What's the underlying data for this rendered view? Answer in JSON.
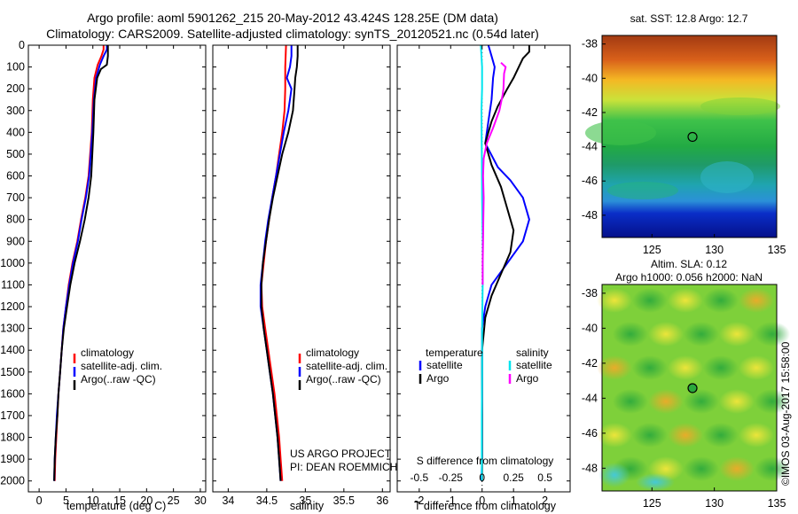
{
  "header": {
    "title_line1": "Argo profile: aoml 5901262_215 20-May-2012 43.424S 128.25E (DM data)",
    "title_line2": "Climatology: CARS2009. Satellite-adjusted climatology: synTS_20120521.nc (0.54d later)"
  },
  "colors": {
    "climatology": "#ff0000",
    "satellite": "#0000ff",
    "argo": "#000000",
    "salinity_satellite": "#00e5ee",
    "salinity_argo": "#ff00ff"
  },
  "panels": {
    "temperature": {
      "xlabel": "temperature (deg C)"
    },
    "salinity": {
      "xlabel": "salinity",
      "credit_line1": "US ARGO PROJECT",
      "credit_line2": "PI: DEAN ROEMMICH"
    },
    "difference": {
      "xlabel_bottom": "T difference from climatology",
      "xlabel_top": "S difference from climatology"
    }
  },
  "legends": {
    "clim": [
      "climatology",
      "satellite-adj. clim.",
      "Argo(..raw -QC)"
    ],
    "diff_temperature_title": "temperature",
    "diff_salinity_title": "salinity",
    "diff_temperature_items": [
      "satellite",
      "Argo"
    ],
    "diff_salinity_items": [
      "satellite",
      "Argo"
    ]
  },
  "maps": {
    "sst_title": "sat. SST: 12.8 Argo: 12.7",
    "sla_title_line1": "Altim. SLA: 0.12",
    "sla_title_line2": "Argo h1000: 0.056 h2000: NaN",
    "stamp": "©IMOS 03-Aug-2017 15:58:00",
    "lon_ticks": [
      "125",
      "130",
      "135"
    ],
    "lat_ticks": [
      "-38",
      "-40",
      "-42",
      "-44",
      "-46",
      "-48"
    ],
    "lon_range": [
      121,
      135
    ],
    "lat_range": [
      -49.3,
      -37.5
    ],
    "argo_lon": 128.25,
    "argo_lat": -43.424
  },
  "chart_data": [
    {
      "type": "line",
      "panel": "temperature",
      "xlabel": "temperature (deg C)",
      "xlim": [
        -2,
        31
      ],
      "ylim": [
        2050,
        0
      ],
      "x_ticks": [
        0,
        5,
        10,
        15,
        20,
        25,
        30
      ],
      "y_ticks": [
        0,
        100,
        200,
        300,
        400,
        500,
        600,
        700,
        800,
        900,
        1000,
        1100,
        1200,
        1300,
        1400,
        1500,
        1600,
        1700,
        1800,
        1900,
        2000
      ],
      "series": [
        {
          "name": "climatology",
          "color": "#ff0000",
          "points": [
            [
              12.0,
              0
            ],
            [
              12.0,
              20
            ],
            [
              11.6,
              50
            ],
            [
              10.9,
              90
            ],
            [
              10.3,
              150
            ],
            [
              10.0,
              250
            ],
            [
              9.8,
              400
            ],
            [
              9.5,
              500
            ],
            [
              9.2,
              600
            ],
            [
              8.6,
              700
            ],
            [
              7.8,
              800
            ],
            [
              7.1,
              900
            ],
            [
              6.2,
              1000
            ],
            [
              5.5,
              1100
            ],
            [
              5.0,
              1200
            ],
            [
              4.5,
              1300
            ],
            [
              4.2,
              1400
            ],
            [
              3.9,
              1500
            ],
            [
              3.6,
              1600
            ],
            [
              3.4,
              1700
            ],
            [
              3.2,
              1800
            ],
            [
              3.0,
              1900
            ],
            [
              2.9,
              2000
            ]
          ]
        },
        {
          "name": "satellite-adj. clim.",
          "color": "#0000ff",
          "points": [
            [
              12.6,
              0
            ],
            [
              12.6,
              20
            ],
            [
              12.0,
              50
            ],
            [
              11.3,
              90
            ],
            [
              10.6,
              150
            ],
            [
              10.2,
              250
            ],
            [
              9.9,
              400
            ],
            [
              9.6,
              500
            ],
            [
              9.3,
              600
            ],
            [
              8.7,
              700
            ],
            [
              7.9,
              800
            ],
            [
              7.2,
              900
            ],
            [
              6.3,
              1000
            ],
            [
              5.6,
              1100
            ],
            [
              5.0,
              1200
            ],
            [
              4.5,
              1300
            ],
            [
              4.2,
              1400
            ],
            [
              3.9,
              1500
            ],
            [
              3.6,
              1600
            ],
            [
              3.3,
              1700
            ],
            [
              3.1,
              1800
            ],
            [
              2.9,
              1900
            ],
            [
              2.8,
              2000
            ]
          ]
        },
        {
          "name": "Argo(..raw -QC)",
          "color": "#000000",
          "points": [
            [
              12.8,
              0
            ],
            [
              12.8,
              50
            ],
            [
              12.6,
              90
            ],
            [
              11.5,
              110
            ],
            [
              10.8,
              150
            ],
            [
              10.3,
              250
            ],
            [
              10.1,
              400
            ],
            [
              9.9,
              500
            ],
            [
              9.7,
              600
            ],
            [
              9.2,
              700
            ],
            [
              8.5,
              800
            ],
            [
              7.6,
              900
            ],
            [
              6.6,
              1000
            ],
            [
              5.8,
              1100
            ],
            [
              5.2,
              1200
            ],
            [
              4.6,
              1300
            ],
            [
              4.2,
              1400
            ],
            [
              3.9,
              1500
            ],
            [
              3.6,
              1600
            ],
            [
              3.4,
              1700
            ],
            [
              3.1,
              1800
            ],
            [
              2.9,
              1900
            ],
            [
              2.8,
              2000
            ]
          ]
        }
      ]
    },
    {
      "type": "line",
      "panel": "salinity",
      "xlabel": "salinity",
      "xlim": [
        33.8,
        36.1
      ],
      "ylim": [
        2050,
        0
      ],
      "x_ticks": [
        34,
        34.5,
        35,
        35.5,
        36
      ],
      "series": [
        {
          "name": "climatology",
          "color": "#ff0000",
          "points": [
            [
              34.75,
              0
            ],
            [
              34.74,
              100
            ],
            [
              34.74,
              200
            ],
            [
              34.73,
              300
            ],
            [
              34.7,
              400
            ],
            [
              34.66,
              500
            ],
            [
              34.62,
              600
            ],
            [
              34.57,
              700
            ],
            [
              34.53,
              800
            ],
            [
              34.49,
              900
            ],
            [
              34.46,
              1000
            ],
            [
              34.43,
              1100
            ],
            [
              34.44,
              1200
            ],
            [
              34.48,
              1300
            ],
            [
              34.52,
              1400
            ],
            [
              34.56,
              1500
            ],
            [
              34.6,
              1600
            ],
            [
              34.63,
              1700
            ],
            [
              34.66,
              1800
            ],
            [
              34.68,
              1900
            ],
            [
              34.7,
              2000
            ]
          ]
        },
        {
          "name": "satellite-adj. clim.",
          "color": "#0000ff",
          "points": [
            [
              34.82,
              0
            ],
            [
              34.82,
              50
            ],
            [
              34.8,
              100
            ],
            [
              34.76,
              150
            ],
            [
              34.82,
              200
            ],
            [
              34.8,
              250
            ],
            [
              34.78,
              300
            ],
            [
              34.72,
              400
            ],
            [
              34.67,
              500
            ],
            [
              34.62,
              600
            ],
            [
              34.57,
              700
            ],
            [
              34.52,
              800
            ],
            [
              34.48,
              900
            ],
            [
              34.45,
              1000
            ],
            [
              34.42,
              1100
            ],
            [
              34.42,
              1200
            ],
            [
              34.46,
              1300
            ],
            [
              34.5,
              1400
            ],
            [
              34.54,
              1500
            ],
            [
              34.58,
              1600
            ],
            [
              34.61,
              1700
            ],
            [
              34.64,
              1800
            ],
            [
              34.66,
              1900
            ],
            [
              34.68,
              2000
            ]
          ]
        },
        {
          "name": "Argo(..raw -QC)",
          "color": "#000000",
          "points": [
            [
              34.9,
              0
            ],
            [
              34.9,
              50
            ],
            [
              34.89,
              100
            ],
            [
              34.87,
              150
            ],
            [
              34.86,
              200
            ],
            [
              34.84,
              300
            ],
            [
              34.78,
              400
            ],
            [
              34.7,
              500
            ],
            [
              34.64,
              600
            ],
            [
              34.58,
              700
            ],
            [
              34.53,
              800
            ],
            [
              34.49,
              900
            ],
            [
              34.45,
              1000
            ],
            [
              34.43,
              1100
            ],
            [
              34.43,
              1200
            ],
            [
              34.46,
              1300
            ],
            [
              34.5,
              1400
            ],
            [
              34.54,
              1500
            ],
            [
              34.58,
              1600
            ],
            [
              34.61,
              1700
            ],
            [
              34.64,
              1800
            ],
            [
              34.66,
              1900
            ],
            [
              34.68,
              2000
            ]
          ]
        }
      ]
    },
    {
      "type": "line",
      "panel": "difference",
      "xlabel": "T difference from climatology",
      "xlabel_top": "S difference from climatology",
      "xlim": [
        -2.7,
        2.8
      ],
      "ylim": [
        2050,
        0
      ],
      "x_ticks": [
        -2,
        -1,
        0,
        1,
        2
      ],
      "x_ticks_top": [
        -0.5,
        -0.25,
        0,
        0.25,
        0.5
      ],
      "series": [
        {
          "name": "temperature satellite",
          "color": "#0000ff",
          "points": [
            [
              0.2,
              0
            ],
            [
              0.3,
              50
            ],
            [
              0.4,
              100
            ],
            [
              0.35,
              150
            ],
            [
              0.3,
              250
            ],
            [
              0.2,
              350
            ],
            [
              0.1,
              450
            ],
            [
              0.5,
              560
            ],
            [
              0.9,
              620
            ],
            [
              1.3,
              700
            ],
            [
              1.5,
              800
            ],
            [
              1.3,
              900
            ],
            [
              0.8,
              1000
            ],
            [
              0.3,
              1100
            ],
            [
              0.1,
              1200
            ],
            [
              0.0,
              1300
            ],
            [
              0.0,
              1500
            ],
            [
              0.0,
              1700
            ],
            [
              0.0,
              1900
            ],
            [
              -0.02,
              2000
            ]
          ]
        },
        {
          "name": "temperature Argo",
          "color": "#000000",
          "points": [
            [
              1.5,
              0
            ],
            [
              1.5,
              30
            ],
            [
              1.3,
              60
            ],
            [
              1.2,
              90
            ],
            [
              1.0,
              150
            ],
            [
              0.8,
              200
            ],
            [
              0.5,
              280
            ],
            [
              0.3,
              350
            ],
            [
              0.2,
              400
            ],
            [
              0.1,
              450
            ],
            [
              0.3,
              550
            ],
            [
              0.6,
              650
            ],
            [
              0.8,
              750
            ],
            [
              1.0,
              850
            ],
            [
              0.9,
              950
            ],
            [
              0.6,
              1050
            ],
            [
              0.3,
              1150
            ],
            [
              0.1,
              1250
            ],
            [
              0.0,
              1400
            ],
            [
              0.0,
              1600
            ],
            [
              0.0,
              1800
            ],
            [
              0.0,
              2000
            ]
          ]
        },
        {
          "name": "salinity satellite",
          "color": "#00e5ee",
          "points": [
            [
              -0.04,
              0
            ],
            [
              0.0,
              100
            ],
            [
              0.0,
              200
            ],
            [
              -0.02,
              300
            ],
            [
              -0.01,
              500
            ],
            [
              0.0,
              700
            ],
            [
              0.02,
              900
            ],
            [
              0.02,
              1100
            ],
            [
              0.0,
              1300
            ],
            [
              0.0,
              1500
            ],
            [
              -0.01,
              1700
            ],
            [
              -0.01,
              1900
            ],
            [
              -0.01,
              2000
            ]
          ]
        },
        {
          "name": "salinity Argo",
          "color": "#ff00ff",
          "points": [
            [
              0.6,
              80
            ],
            [
              0.75,
              100
            ],
            [
              0.7,
              130
            ],
            [
              0.68,
              200
            ],
            [
              0.65,
              230
            ],
            [
              0.55,
              300
            ],
            [
              0.35,
              380
            ],
            [
              0.15,
              450
            ],
            [
              0.05,
              520
            ],
            [
              0.03,
              600
            ],
            [
              0.05,
              700
            ],
            [
              0.04,
              800
            ],
            [
              0.03,
              900
            ],
            [
              0.02,
              1000
            ],
            [
              0.02,
              1100
            ]
          ]
        }
      ]
    }
  ]
}
